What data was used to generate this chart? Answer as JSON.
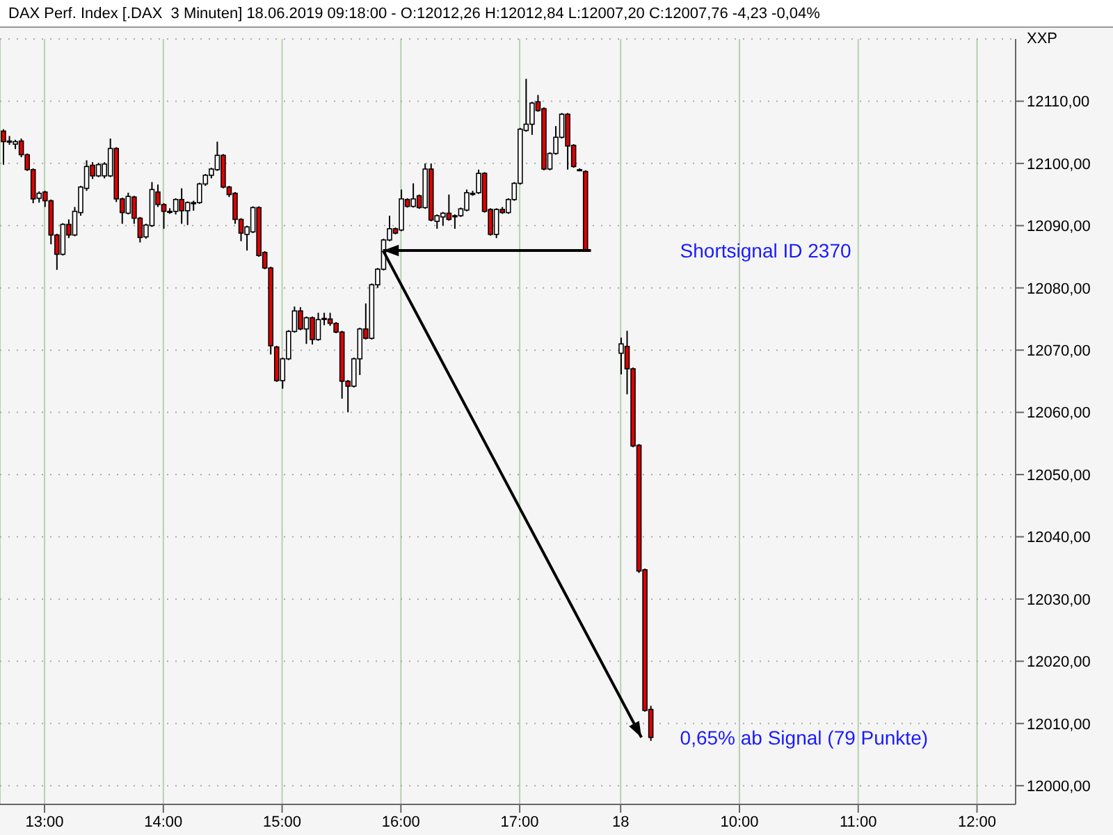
{
  "chart_data": {
    "type": "candlestick",
    "title": "DAX Perf. Index [.DAX  3 Minuten] 18.06.2019 09:18:00 - O:12012,26 H:12012,84 L:12007,20 C:12007,76 -4,23 -0,04%",
    "ylabel": "XXP",
    "categories": [
      null,
      null,
      null,
      null,
      null,
      null,
      null,
      "13:00",
      null,
      null,
      null,
      null,
      null,
      null,
      null,
      null,
      null,
      null,
      null,
      null,
      null,
      null,
      null,
      null,
      null,
      null,
      null,
      "14:00",
      null,
      null,
      null,
      null,
      null,
      null,
      null,
      null,
      null,
      null,
      null,
      null,
      null,
      null,
      null,
      null,
      null,
      null,
      null,
      "15:00",
      null,
      null,
      null,
      null,
      null,
      null,
      null,
      null,
      null,
      null,
      null,
      null,
      null,
      null,
      null,
      null,
      null,
      null,
      null,
      "16:00",
      null,
      null,
      null,
      null,
      null,
      null,
      null,
      null,
      null,
      null,
      null,
      null,
      null,
      null,
      null,
      null,
      null,
      null,
      null,
      "17:00",
      null,
      null,
      null,
      null,
      null,
      null,
      null,
      null,
      null,
      null,
      null,
      null,
      null,
      null,
      null,
      null,
      "18",
      null,
      null,
      null,
      null,
      null,
      null,
      null,
      null,
      null,
      null,
      null,
      null,
      null,
      null,
      null,
      null,
      null,
      null,
      null,
      "10:00",
      null,
      null,
      null,
      null,
      null,
      null,
      null,
      null,
      null,
      null,
      null,
      null,
      null,
      null,
      null,
      null,
      null,
      null,
      null,
      "11:00",
      null,
      null,
      null,
      null,
      null,
      null,
      null,
      null,
      null,
      null,
      null,
      null,
      null,
      null,
      null,
      null,
      null,
      null,
      null,
      "12:00",
      null,
      null,
      null,
      null,
      null,
      null
    ],
    "ohlc": [
      [
        12105.2,
        12105.5,
        12099.8,
        12103.5
      ],
      [
        12103.5,
        12104.4,
        12103.0,
        12103.6
      ],
      [
        12103.1,
        12103.8,
        12102.3,
        12103.5
      ],
      [
        12103.6,
        12104.0,
        12101.0,
        12101.4
      ],
      [
        12101.4,
        12101.6,
        12098.8,
        12099.0
      ],
      [
        12099.0,
        12099.2,
        12093.6,
        12094.3
      ],
      [
        12094.4,
        12095.5,
        12093.7,
        12095.2
      ],
      [
        12095.4,
        12095.6,
        12093.0,
        12094.0
      ],
      [
        12094.0,
        12094.2,
        12087.0,
        12088.5
      ],
      [
        12088.5,
        12088.7,
        12082.9,
        12085.4
      ],
      [
        12085.4,
        12090.4,
        12085.2,
        12090.2
      ],
      [
        12090.2,
        12091.0,
        12088.0,
        12088.5
      ],
      [
        12088.5,
        12093.0,
        12088.3,
        12092.3
      ],
      [
        12092.1,
        12096.4,
        12091.6,
        12096.2
      ],
      [
        12096.0,
        12100.5,
        12095.6,
        12099.5
      ],
      [
        12099.7,
        12100.2,
        12097.5,
        12098.0
      ],
      [
        12098.0,
        12100.1,
        12097.8,
        12099.8
      ],
      [
        12098.0,
        12100.2,
        12097.6,
        12099.9
      ],
      [
        12098.0,
        12104.0,
        12097.8,
        12102.4
      ],
      [
        12102.4,
        12102.6,
        12093.8,
        12094.3
      ],
      [
        12094.3,
        12094.5,
        12090.3,
        12092.1
      ],
      [
        12092.0,
        12095.3,
        12091.8,
        12094.7
      ],
      [
        12094.6,
        12094.8,
        12090.3,
        12091.2
      ],
      [
        12091.2,
        12091.4,
        12087.3,
        12088.1
      ],
      [
        12088.2,
        12090.3,
        12087.9,
        12090.1
      ],
      [
        12090.0,
        12097.0,
        12089.8,
        12095.8
      ],
      [
        12095.4,
        12096.6,
        12093.0,
        12093.4
      ],
      [
        12093.4,
        12093.6,
        12089.5,
        12092.3
      ],
      [
        12092.3,
        12092.8,
        12091.9,
        12092.3
      ],
      [
        12092.3,
        12094.4,
        12091.8,
        12094.2
      ],
      [
        12094.2,
        12096.0,
        12090.3,
        12092.4
      ],
      [
        12092.4,
        12093.9,
        12090.1,
        12093.7
      ],
      [
        12093.7,
        12094.0,
        12092.4,
        12093.7
      ],
      [
        12093.7,
        12096.9,
        12093.5,
        12096.7
      ],
      [
        12096.7,
        12098.3,
        12096.4,
        12098.1
      ],
      [
        12098.1,
        12099.3,
        12097.6,
        12099.1
      ],
      [
        12099.0,
        12103.5,
        12098.8,
        12101.3
      ],
      [
        12101.3,
        12101.5,
        12096.0,
        12096.2
      ],
      [
        12096.2,
        12096.4,
        12094.6,
        12095.0
      ],
      [
        12095.2,
        12095.4,
        12090.3,
        12091.0
      ],
      [
        12091.0,
        12091.2,
        12087.5,
        12088.8
      ],
      [
        12088.6,
        12090.0,
        12086.0,
        12089.8
      ],
      [
        12089.0,
        12093.1,
        12088.8,
        12092.9
      ],
      [
        12092.9,
        12093.1,
        12085.0,
        12085.2
      ],
      [
        12085.7,
        12085.9,
        12083.0,
        12083.2
      ],
      [
        12083.2,
        12083.4,
        12069.3,
        12070.7
      ],
      [
        12070.5,
        12070.7,
        12064.9,
        12065.1
      ],
      [
        12065.1,
        12068.8,
        12063.8,
        12068.6
      ],
      [
        12068.6,
        12073.2,
        12068.4,
        12073.0
      ],
      [
        12073.0,
        12077.0,
        12072.8,
        12076.3
      ],
      [
        12076.3,
        12076.9,
        12073.2,
        12073.4
      ],
      [
        12073.4,
        12075.4,
        12071.0,
        12075.2
      ],
      [
        12075.2,
        12075.4,
        12070.9,
        12071.7
      ],
      [
        12071.7,
        12076.0,
        12071.5,
        12074.9
      ],
      [
        12075.0,
        12076.0,
        12074.0,
        12075.1
      ],
      [
        12075.0,
        12076.0,
        12073.9,
        12074.3
      ],
      [
        12074.3,
        12074.5,
        12072.7,
        12072.9
      ],
      [
        12072.9,
        12073.1,
        12062.2,
        12065.0
      ],
      [
        12065.0,
        12065.2,
        12060.0,
        12064.2
      ],
      [
        12064.2,
        12068.8,
        12064.0,
        12068.6
      ],
      [
        12068.6,
        12073.6,
        12066.0,
        12073.4
      ],
      [
        12073.4,
        12077.5,
        12071.7,
        12071.9
      ],
      [
        12071.9,
        12080.7,
        12071.7,
        12080.5
      ],
      [
        12080.5,
        12083.2,
        12080.0,
        12083.0
      ],
      [
        12083.0,
        12087.9,
        12082.8,
        12087.7
      ],
      [
        12087.7,
        12091.6,
        12087.5,
        12089.5
      ],
      [
        12089.5,
        12089.7,
        12088.6,
        12088.8
      ],
      [
        12089.3,
        12095.8,
        12089.1,
        12094.3
      ],
      [
        12094.2,
        12094.4,
        12092.9,
        12093.1
      ],
      [
        12093.1,
        12096.8,
        12092.9,
        12094.3
      ],
      [
        12094.8,
        12095.0,
        12092.7,
        12092.9
      ],
      [
        12092.9,
        12100.0,
        12092.7,
        12099.1
      ],
      [
        12099.1,
        12100.0,
        12090.7,
        12090.9
      ],
      [
        12090.7,
        12091.8,
        12089.5,
        12091.6
      ],
      [
        12091.4,
        12092.2,
        12090.0,
        12092.0
      ],
      [
        12092.0,
        12095.0,
        12090.8,
        12091.0
      ],
      [
        12091.6,
        12091.8,
        12089.5,
        12091.6
      ],
      [
        12091.6,
        12092.9,
        12091.4,
        12092.7
      ],
      [
        12092.5,
        12095.8,
        12092.3,
        12095.3
      ],
      [
        12095.2,
        12095.6,
        12094.8,
        12095.2
      ],
      [
        12095.3,
        12099.0,
        12095.1,
        12098.4
      ],
      [
        12098.4,
        12098.6,
        12092.1,
        12092.3
      ],
      [
        12092.6,
        12092.8,
        12088.4,
        12088.6
      ],
      [
        12088.6,
        12092.8,
        12088.0,
        12092.6
      ],
      [
        12092.6,
        12093.0,
        12091.9,
        12092.1
      ],
      [
        12092.1,
        12094.4,
        12091.9,
        12094.2
      ],
      [
        12094.2,
        12097.0,
        12094.0,
        12096.8
      ],
      [
        12096.8,
        12105.7,
        12096.6,
        12105.5
      ],
      [
        12105.3,
        12113.6,
        12105.1,
        12106.3
      ],
      [
        12106.3,
        12109.9,
        12104.6,
        12109.7
      ],
      [
        12109.9,
        12111.0,
        12108.3,
        12108.5
      ],
      [
        12108.8,
        12109.0,
        12098.9,
        12099.1
      ],
      [
        12099.1,
        12101.8,
        12098.9,
        12101.6
      ],
      [
        12101.6,
        12106.0,
        12101.4,
        12104.2
      ],
      [
        12104.2,
        12108.1,
        12104.0,
        12107.9
      ],
      [
        12107.9,
        12108.1,
        12099.0,
        12102.8
      ],
      [
        12102.9,
        12103.1,
        12099.3,
        12099.5
      ],
      [
        12099.0,
        12099.2,
        12098.8,
        12099.0
      ],
      [
        12098.7,
        12098.9,
        12085.8,
        12086.0
      ],
      null,
      null,
      null,
      null,
      null,
      [
        12069.5,
        12072.0,
        12066.1,
        12071.0
      ],
      [
        12070.6,
        12073.1,
        12062.9,
        12067.0
      ],
      [
        12067.0,
        12067.2,
        12054.4,
        12054.6
      ],
      [
        12054.7,
        12054.9,
        12034.2,
        12034.5
      ],
      [
        12034.7,
        12034.9,
        12011.9,
        12012.1
      ],
      [
        12012.26,
        12012.84,
        12007.2,
        12007.76
      ],
      null,
      null,
      null,
      null,
      null,
      null,
      null,
      null,
      null,
      null,
      null,
      null,
      null,
      null,
      null,
      null,
      null,
      null,
      null,
      null,
      null,
      null,
      null,
      null,
      null,
      null,
      null,
      null,
      null,
      null,
      null,
      null,
      null,
      null,
      null,
      null,
      null,
      null,
      null,
      null,
      null,
      null,
      null,
      null,
      null,
      null,
      null,
      null,
      null,
      null,
      null,
      null,
      null,
      null,
      null,
      null,
      null,
      null,
      null,
      null,
      null
    ],
    "colors": [
      "#e00000",
      "#ffffff",
      "#ffffff",
      "#e00000",
      "#e00000",
      "#e00000",
      "#ffffff",
      "#e00000",
      "#e00000",
      "#e00000",
      "#ffffff",
      "#e00000",
      "#ffffff",
      "#ffffff",
      "#ffffff",
      "#e00000",
      "#ffffff",
      "#ffffff",
      "#ffffff",
      "#e00000",
      "#e00000",
      "#ffffff",
      "#e00000",
      "#e00000",
      "#ffffff",
      "#ffffff",
      "#e00000",
      "#e00000",
      "#ffffff",
      "#ffffff",
      "#e00000",
      "#ffffff",
      "#ffffff",
      "#ffffff",
      "#ffffff",
      "#ffffff",
      "#ffffff",
      "#e00000",
      "#e00000",
      "#e00000",
      "#e00000",
      "#ffffff",
      "#ffffff",
      "#e00000",
      "#e00000",
      "#e00000",
      "#e00000",
      "#ffffff",
      "#ffffff",
      "#ffffff",
      "#e00000",
      "#ffffff",
      "#e00000",
      "#ffffff",
      "#ffffff",
      "#e00000",
      "#e00000",
      "#e00000",
      "#e00000",
      "#ffffff",
      "#ffffff",
      "#e00000",
      "#ffffff",
      "#ffffff",
      "#ffffff",
      "#ffffff",
      "#e00000",
      "#ffffff",
      "#e00000",
      "#ffffff",
      "#e00000",
      "#ffffff",
      "#e00000",
      "#ffffff",
      "#ffffff",
      "#e00000",
      "#ffffff",
      "#ffffff",
      "#ffffff",
      "#ffffff",
      "#ffffff",
      "#e00000",
      "#e00000",
      "#ffffff",
      "#e00000",
      "#ffffff",
      "#ffffff",
      "#ffffff",
      "#ffffff",
      "#ffffff",
      "#e00000",
      "#e00000",
      "#ffffff",
      "#ffffff",
      "#ffffff",
      "#e00000",
      "#e00000",
      "#ffffff",
      "#e00000",
      null,
      null,
      null,
      null,
      null,
      "#ffffff",
      "#e00000",
      "#e00000",
      "#e00000",
      "#e00000",
      "#e00000",
      null,
      null,
      null,
      null,
      null,
      null,
      null,
      null,
      null,
      null,
      null,
      null,
      null,
      null,
      null,
      null,
      null,
      null,
      null,
      null,
      null,
      null,
      null,
      null,
      null,
      null,
      null,
      null,
      null,
      null,
      null,
      null,
      null,
      null,
      null,
      null,
      null,
      null,
      null,
      null,
      null,
      null,
      null,
      null,
      null,
      null,
      null,
      null,
      null,
      null,
      null,
      null,
      null,
      null,
      null,
      null,
      null,
      null,
      null,
      null,
      null
    ],
    "ylim": [
      11997,
      12120
    ],
    "yticks": [
      {
        "value": 12000,
        "label": "12000,00"
      },
      {
        "value": 12010,
        "label": "12010,00"
      },
      {
        "value": 12020,
        "label": "12020,00"
      },
      {
        "value": 12030,
        "label": "12030,00"
      },
      {
        "value": 12040,
        "label": "12040,00"
      },
      {
        "value": 12050,
        "label": "12050,00"
      },
      {
        "value": 12060,
        "label": "12060,00"
      },
      {
        "value": 12070,
        "label": "12070,00"
      },
      {
        "value": 12080,
        "label": "12080,00"
      },
      {
        "value": 12090,
        "label": "12090,00"
      },
      {
        "value": 12100,
        "label": "12100,00"
      },
      {
        "value": 12110,
        "label": "12110,00"
      }
    ],
    "grid": true,
    "annotations": [
      "Shortsignal ID 2370",
      "0,65% ab Signal (79 Punkte)"
    ]
  }
}
